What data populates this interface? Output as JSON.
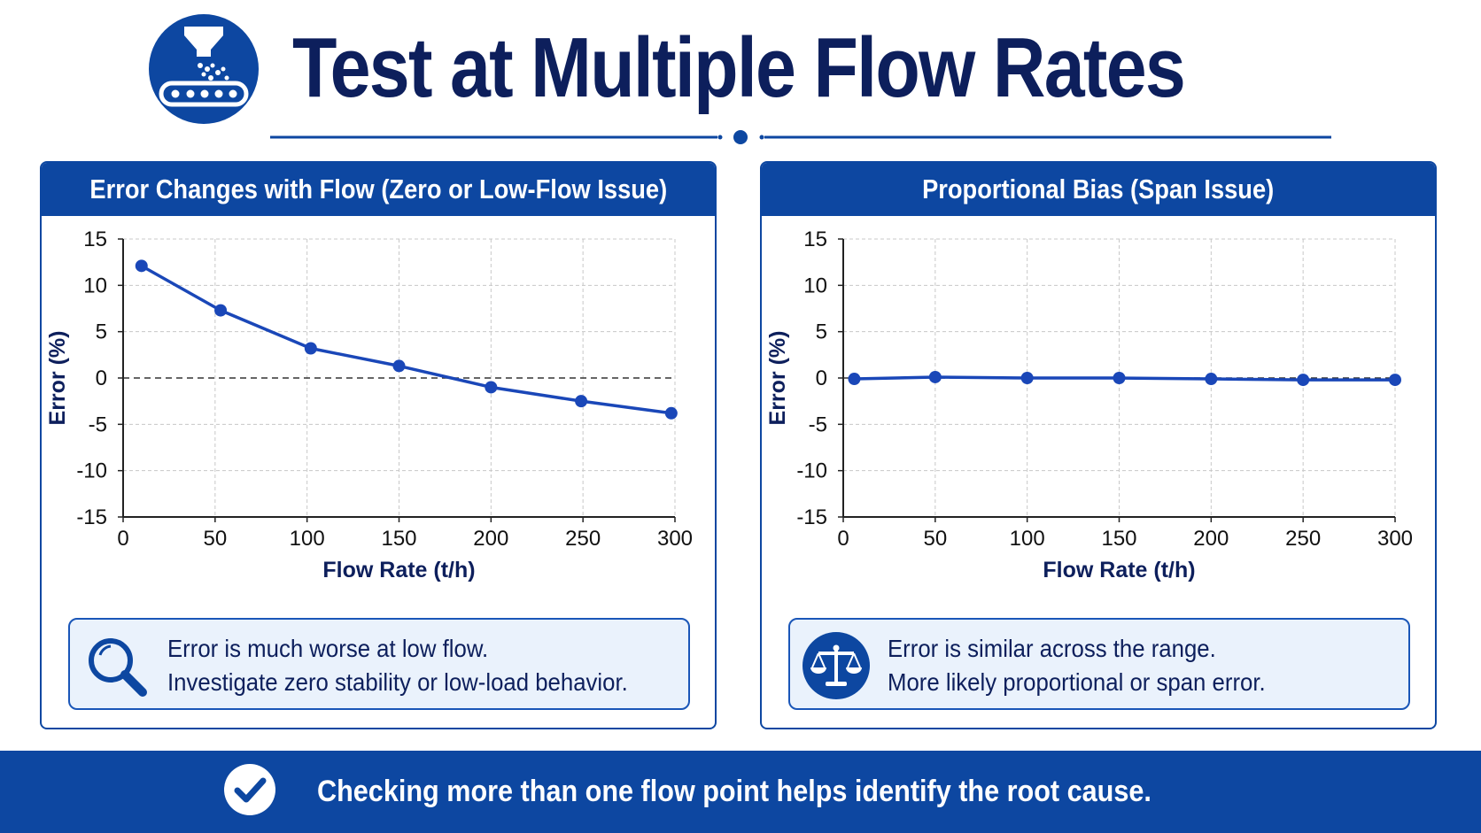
{
  "header": {
    "title": "Test at Multiple Flow Rates",
    "logo_icon": "conveyor-feeder-icon"
  },
  "panels": [
    {
      "title": "Error Changes with Flow (Zero or Low-Flow Issue)",
      "note": {
        "icon": "magnifier-icon",
        "line1": "Error is much worse at low flow.",
        "line2": "Investigate zero stability or low-load behavior."
      }
    },
    {
      "title": "Proportional Bias (Span Issue)",
      "note": {
        "icon": "balance-scale-icon",
        "line1": "Error is similar across the range.",
        "line2": "More likely proportional or span error."
      }
    }
  ],
  "footer": {
    "icon": "check-circle-icon",
    "text": "Checking more than one flow point helps identify the root cause."
  },
  "colors": {
    "primary": "#0d47a1",
    "title": "#0d1f5c",
    "line": "#1a47b8",
    "note_bg": "#eaf2fc"
  },
  "chart_data": [
    {
      "type": "line",
      "title": "Error Changes with Flow (Zero or Low-Flow Issue)",
      "xlabel": "Flow Rate (t/h)",
      "ylabel": "Error (%)",
      "xlim": [
        0,
        300
      ],
      "ylim": [
        -15,
        15
      ],
      "xticks": [
        0,
        50,
        100,
        150,
        200,
        250,
        300
      ],
      "yticks": [
        15,
        10,
        5,
        0,
        -5,
        -10,
        -15
      ],
      "grid": true,
      "zero_line": "dashed",
      "series": [
        {
          "x": [
            10,
            53,
            102,
            150,
            200,
            249,
            298
          ],
          "y": [
            12.1,
            7.3,
            3.2,
            1.3,
            -1.0,
            -2.5,
            -3.8
          ]
        }
      ]
    },
    {
      "type": "line",
      "title": "Proportional Bias (Span Issue)",
      "xlabel": "Flow Rate (t/h)",
      "ylabel": "Error (%)",
      "xlim": [
        0,
        300
      ],
      "ylim": [
        -15,
        15
      ],
      "xticks": [
        0,
        50,
        100,
        150,
        200,
        250,
        300
      ],
      "yticks": [
        15,
        10,
        5,
        0,
        -5,
        -10,
        -15
      ],
      "grid": true,
      "zero_line": "dashed",
      "series": [
        {
          "x": [
            6,
            50,
            100,
            150,
            200,
            250,
            300
          ],
          "y": [
            -0.1,
            0.1,
            0.0,
            0.0,
            -0.1,
            -0.2,
            -0.2
          ]
        }
      ]
    }
  ]
}
